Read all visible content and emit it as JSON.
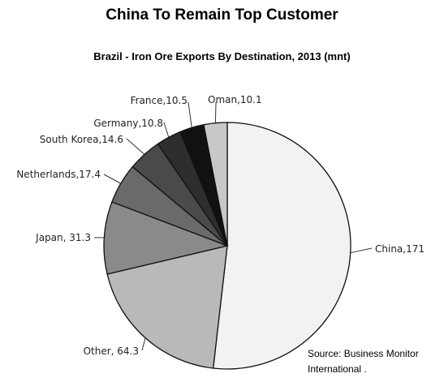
{
  "chart_data": {
    "type": "pie",
    "title": "China To Remain Top Customer",
    "subtitle": "Brazil - Iron Ore Exports By Destination, 2013 (mnt)",
    "slices": [
      {
        "name": "China",
        "value": 171,
        "label": "China,171",
        "color": "#f2f2f2"
      },
      {
        "name": "Other",
        "value": 64.3,
        "label": "Other, 64.3",
        "color": "#b9b9b9"
      },
      {
        "name": "Japan",
        "value": 31.3,
        "label": "Japan, 31.3",
        "color": "#8a8a8a"
      },
      {
        "name": "Netherlands",
        "value": 17.4,
        "label": "Netherlands,17.4",
        "color": "#6a6a6a"
      },
      {
        "name": "South Korea",
        "value": 14.6,
        "label": "South Korea,14.6",
        "color": "#4a4a4a"
      },
      {
        "name": "Germany",
        "value": 10.8,
        "label": "Germany,10.8",
        "color": "#2e2e2e"
      },
      {
        "name": "France",
        "value": 10.5,
        "label": "France,10.5",
        "color": "#111111"
      },
      {
        "name": "Oman",
        "value": 10.1,
        "label": "Oman,10.1",
        "color": "#c8c8c8"
      }
    ],
    "source": "Source: Business Monitor International ."
  }
}
